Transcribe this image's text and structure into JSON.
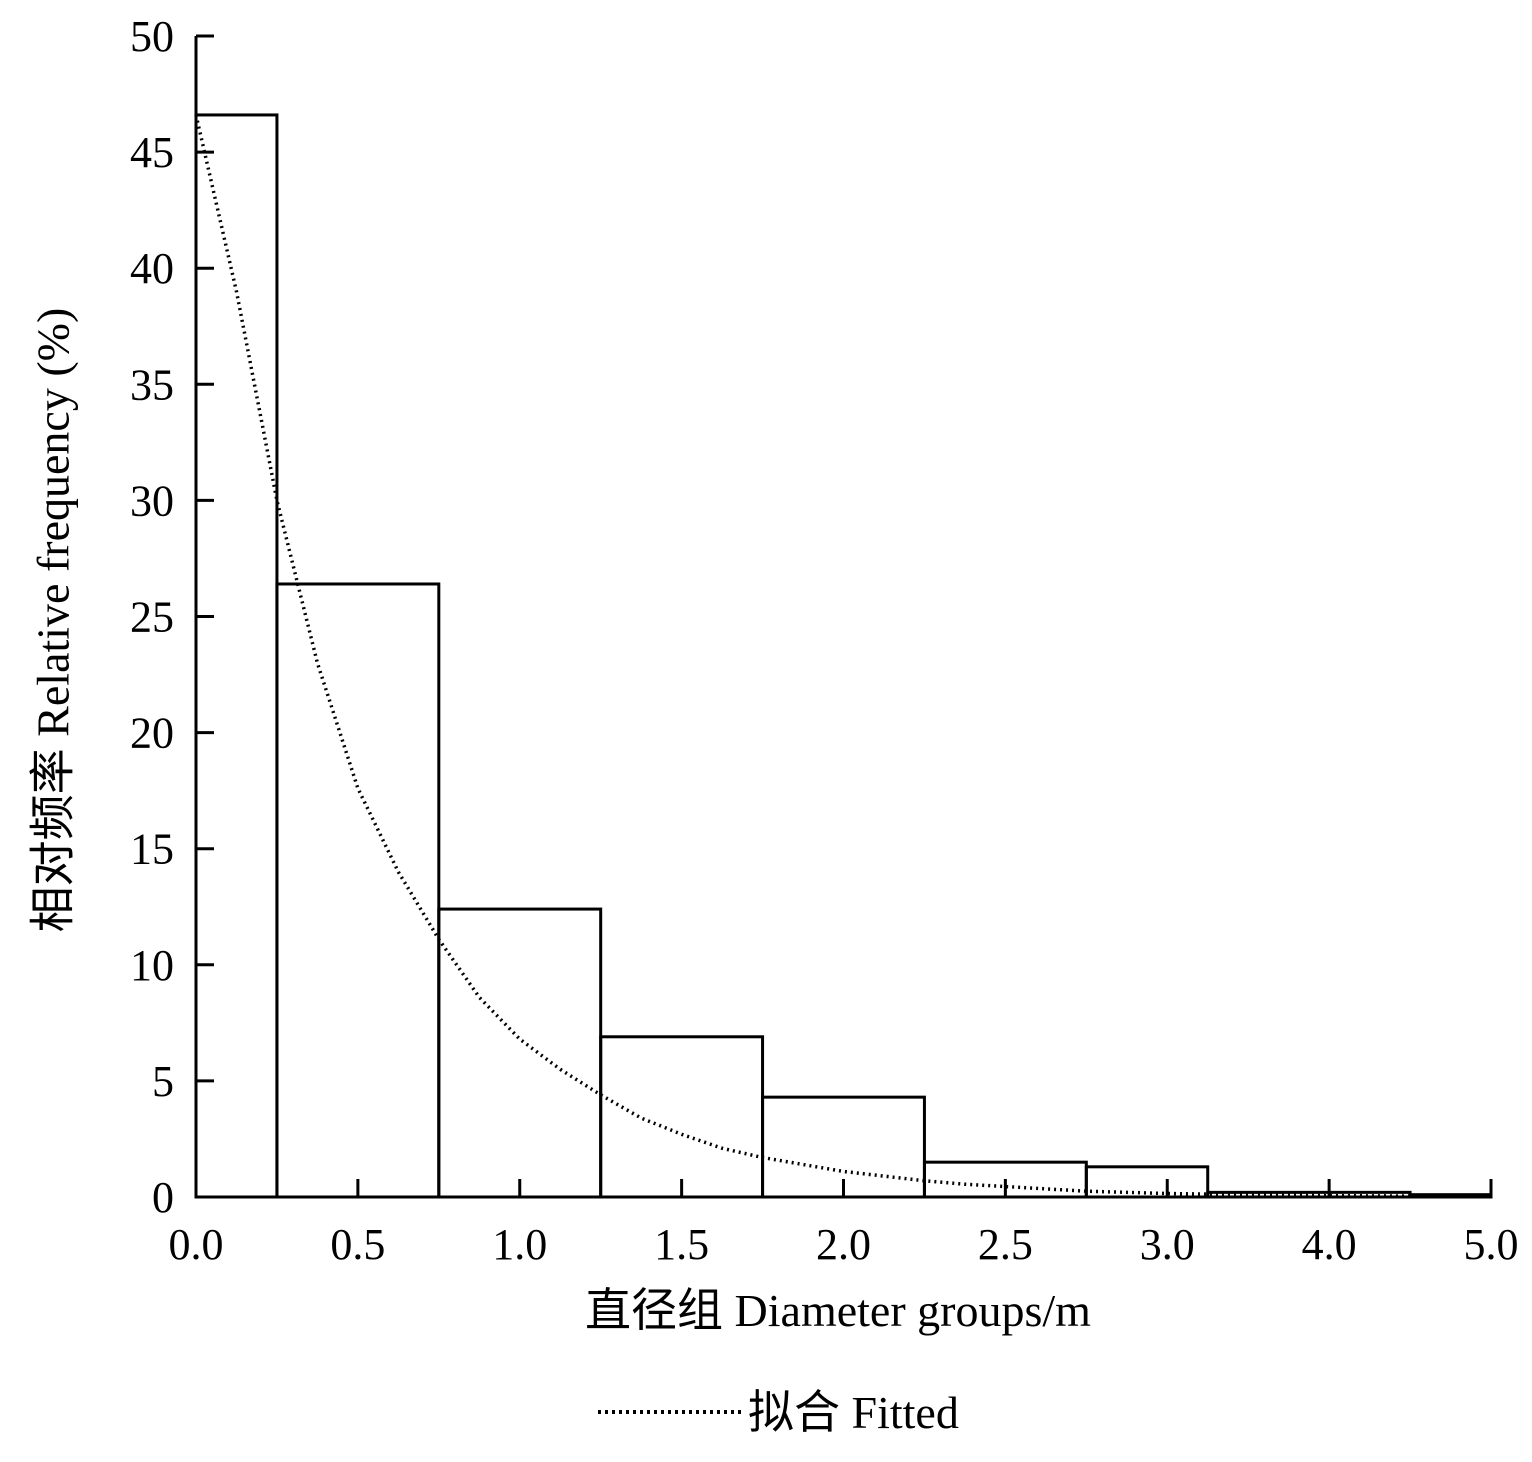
{
  "chart_data": {
    "type": "bar",
    "title": "",
    "xlabel": "直径组 Diameter groups/m",
    "ylabel": "相对频率 Relative frequency (%)",
    "ylim": [
      0,
      50
    ],
    "y_ticks": [
      "0",
      "5",
      "10",
      "15",
      "20",
      "25",
      "30",
      "35",
      "40",
      "45",
      "50"
    ],
    "x_ticks": [
      "0.0",
      "0.5",
      "1.0",
      "1.5",
      "2.0",
      "2.5",
      "3.0",
      "4.0",
      "5.0"
    ],
    "bars": [
      {
        "from": "0.0",
        "to": "0.25",
        "value": 46.6
      },
      {
        "from": "0.25",
        "to": "0.75",
        "value": 26.4
      },
      {
        "from": "0.75",
        "to": "1.25",
        "value": 12.4
      },
      {
        "from": "1.25",
        "to": "1.75",
        "value": 6.9
      },
      {
        "from": "1.75",
        "to": "2.25",
        "value": 4.3
      },
      {
        "from": "2.25",
        "to": "2.75",
        "value": 1.5
      },
      {
        "from": "2.75",
        "to": "3.25",
        "value": 1.3
      },
      {
        "from": "3.25",
        "to": "4.5",
        "value": 0.2
      },
      {
        "from": "4.5",
        "to": "5.0",
        "value": 0.1
      }
    ],
    "fitted": {
      "name": "拟合 Fitted",
      "style": "dotted",
      "x_tick_index": [
        0,
        0.25,
        0.5,
        0.75,
        1,
        1.25,
        1.5,
        1.75,
        2,
        2.25,
        2.5,
        2.75,
        3,
        3.25,
        3.5,
        3.75,
        4,
        4.25,
        4.5,
        4.75,
        5,
        5.25,
        5.5,
        5.75,
        6,
        6.5,
        7,
        7.5,
        8
      ],
      "values": [
        46.6,
        39.0,
        30.0,
        23.0,
        17.6,
        14.0,
        11.1,
        8.6,
        6.8,
        5.5,
        4.4,
        3.4,
        2.7,
        2.1,
        1.7,
        1.4,
        1.1,
        0.9,
        0.7,
        0.55,
        0.45,
        0.35,
        0.25,
        0.2,
        0.15,
        0.1,
        0.06,
        0.04,
        0.02
      ]
    },
    "legend": {
      "position": "bottom-center",
      "entries": [
        "拟合 Fitted"
      ]
    },
    "grid": false
  }
}
